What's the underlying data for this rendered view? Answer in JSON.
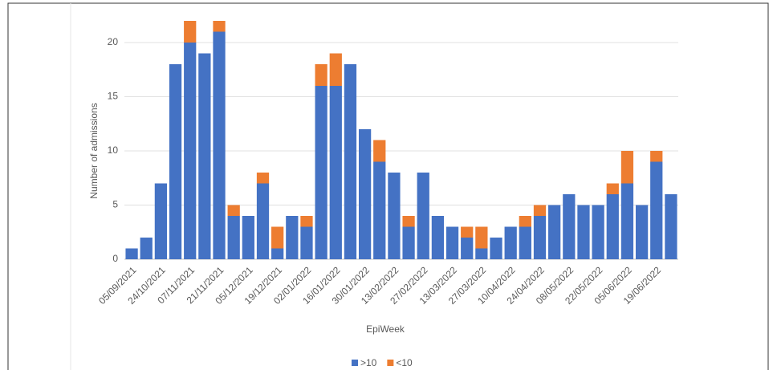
{
  "chart_data": {
    "type": "stacked-bar",
    "x_label": "EpiWeek",
    "y_label": "Number of admissions",
    "categories": [
      "05/09/2021",
      null,
      "24/10/2021",
      null,
      "07/11/2021",
      null,
      "21/11/2021",
      null,
      "05/12/2021",
      null,
      "19/12/2021",
      null,
      "02/01/2022",
      null,
      "16/01/2022",
      null,
      "30/01/2022",
      null,
      "13/02/2022",
      null,
      "27/02/2022",
      null,
      "13/03/2022",
      null,
      "27/03/2022",
      null,
      "10/04/2022",
      null,
      "24/04/2022",
      null,
      "08/05/2022",
      null,
      "22/05/2022",
      null,
      "05/06/2022",
      null,
      "19/06/2022",
      null
    ],
    "series": [
      {
        "name": ">10",
        "color": "#4472c4",
        "values": [
          1,
          2,
          7,
          18,
          20,
          19,
          21,
          4,
          4,
          7,
          1,
          4,
          3,
          16,
          16,
          18,
          12,
          9,
          8,
          3,
          8,
          4,
          3,
          2,
          1,
          2,
          3,
          3,
          4,
          5,
          6,
          5,
          5,
          6,
          7,
          5,
          9,
          6
        ]
      },
      {
        "name": "<10",
        "color": "#ed7d31",
        "values": [
          0,
          0,
          0,
          0,
          2,
          0,
          1,
          1,
          0,
          1,
          2,
          0,
          1,
          2,
          3,
          0,
          0,
          2,
          0,
          1,
          0,
          0,
          0,
          1,
          2,
          0,
          0,
          1,
          1,
          0,
          0,
          0,
          0,
          1,
          3,
          0,
          1,
          0
        ]
      }
    ],
    "ylim": [
      0,
      22
    ],
    "yticks": [
      0,
      5,
      10,
      15,
      20
    ],
    "grid": true
  }
}
